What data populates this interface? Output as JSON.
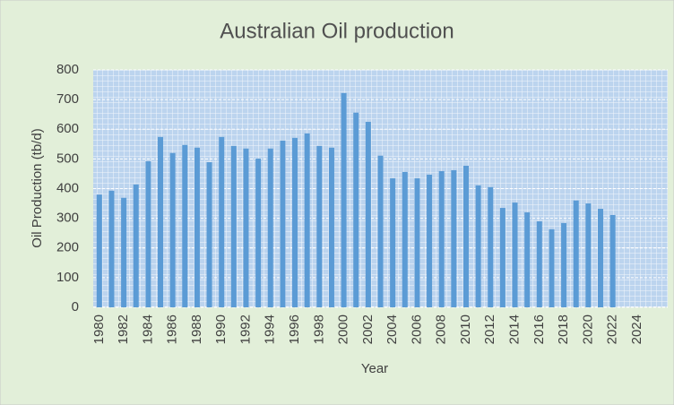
{
  "chart_data": {
    "type": "bar",
    "title": "Australian Oil production",
    "x_label": "Year",
    "y_label": "Oil Production (tb/d)",
    "categories": [
      "1980",
      null,
      "1982",
      null,
      "1984",
      null,
      "1986",
      null,
      "1988",
      null,
      "1990",
      null,
      "1992",
      null,
      "1994",
      null,
      "1996",
      null,
      "1998",
      null,
      "2000",
      null,
      "2002",
      null,
      "2004",
      null,
      "2006",
      null,
      "2008",
      null,
      "2010",
      null,
      "2012",
      null,
      "2014",
      null,
      "2016",
      null,
      "2018",
      null,
      "2020",
      null,
      "2022",
      null,
      "2024",
      null,
      null
    ],
    "values": [
      380,
      393,
      369,
      414,
      492,
      574,
      520,
      547,
      538,
      489,
      574,
      544,
      535,
      501,
      535,
      562,
      571,
      586,
      544,
      538,
      722,
      656,
      625,
      511,
      435,
      456,
      435,
      447,
      459,
      462,
      477,
      411,
      405,
      335,
      353,
      320,
      290,
      263,
      284,
      360,
      350,
      332,
      311,
      null,
      null,
      null,
      null
    ],
    "color": "#5b9bd5",
    "ylim": [
      0,
      800
    ],
    "yticks": [
      0,
      100,
      200,
      300,
      400,
      500,
      600,
      700,
      800
    ],
    "grid": true
  }
}
